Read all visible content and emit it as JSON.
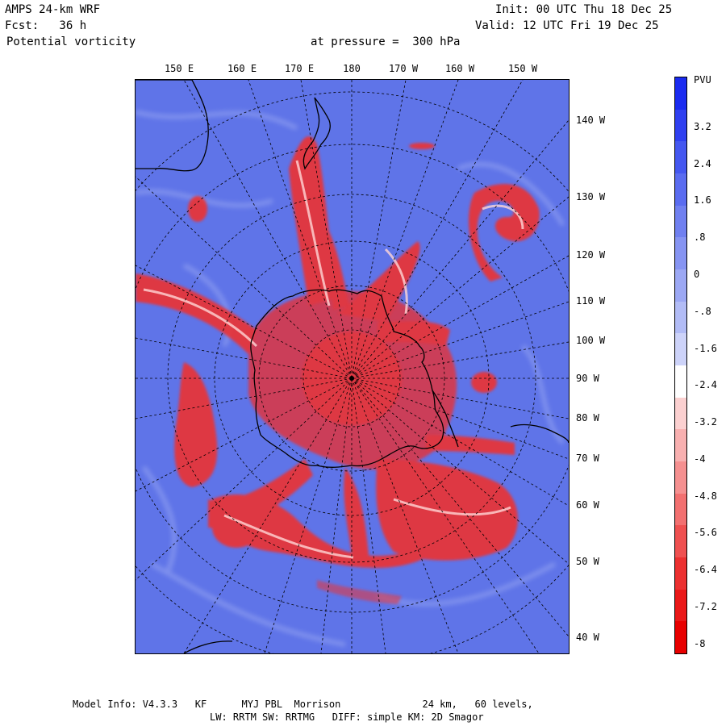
{
  "header": {
    "model": "AMPS 24-km WRF",
    "forecast": "Fcst:   36 h",
    "field": "Potential vorticity",
    "pressure": "at pressure =  300 hPa",
    "init": "Init: 00 UTC Thu 18 Dec 25",
    "valid": "Valid: 12 UTC Fri 19 Dec 25"
  },
  "map": {
    "top_longitude_labels": [
      "150 E",
      "160 E",
      "170 E",
      "180",
      "170 W",
      "160 W",
      "150 W"
    ],
    "right_longitude_labels": [
      "140 W",
      "130 W",
      "120 W",
      "110 W",
      "100 W",
      "90 W",
      "80 W",
      "70 W",
      "60 W",
      "50 W",
      "40 W"
    ],
    "colors": {
      "ocean_blue": "#5f74e8",
      "pv_red": "#ee2b2b",
      "coastline": "#000000",
      "grid": "#000000"
    }
  },
  "colorbar": {
    "unit": "PVU",
    "labels": [
      "3.2",
      "2.4",
      "1.6",
      ".8",
      "0",
      "-.8",
      "-1.6",
      "-2.4",
      "-3.2",
      "-4",
      "-4.8",
      "-5.6",
      "-6.4",
      "-7.2",
      "-8"
    ],
    "colors": [
      "#1a2bf0",
      "#2f40f0",
      "#4457f0",
      "#5a6cf0",
      "#7080f0",
      "#8694f2",
      "#9ca8f4",
      "#b2bcf6",
      "#cdd3f9",
      "#ffffff",
      "#fbd0d0",
      "#f8b0b0",
      "#f59090",
      "#f27070",
      "#ef5050",
      "#ec3030",
      "#ea1818",
      "#e80000"
    ]
  },
  "footer": {
    "line1": "Model Info: V4.3.3   KF      MYJ PBL  Morrison              24 km,   60 levels,",
    "line2": "LW: RRTM SW: RRTMG   DIFF: simple KM: 2D Smagor"
  }
}
